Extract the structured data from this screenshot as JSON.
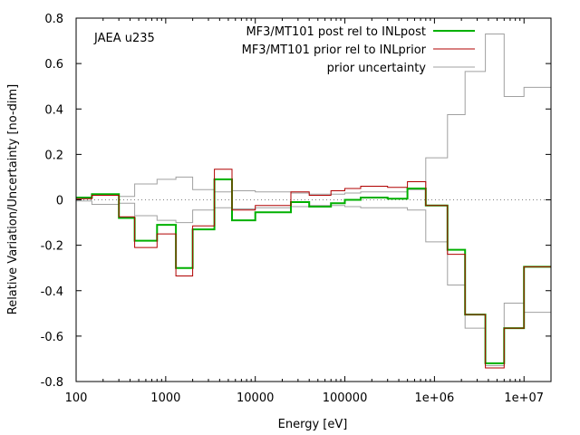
{
  "chart_data": {
    "type": "line",
    "step": true,
    "annotation": "JAEA u235",
    "xlabel": "Energy [eV]",
    "ylabel": "Relative Variation/Uncertainty [no-dim]",
    "xscale": "log",
    "xlim": [
      100,
      20000000
    ],
    "ylim": [
      -0.8,
      0.8
    ],
    "xticks": [
      {
        "value": 100,
        "label": "100"
      },
      {
        "value": 1000,
        "label": "1000"
      },
      {
        "value": 10000,
        "label": "10000"
      },
      {
        "value": 100000,
        "label": "100000"
      },
      {
        "value": 1000000,
        "label": "1e+06"
      },
      {
        "value": 10000000,
        "label": "1e+07"
      }
    ],
    "yticks": [
      {
        "value": -0.8,
        "label": "-0.8"
      },
      {
        "value": -0.6,
        "label": "-0.6"
      },
      {
        "value": -0.4,
        "label": "-0.4"
      },
      {
        "value": -0.2,
        "label": "-0.2"
      },
      {
        "value": 0,
        "label": "0"
      },
      {
        "value": 0.2,
        "label": "0.2"
      },
      {
        "value": 0.4,
        "label": "0.4"
      },
      {
        "value": 0.6,
        "label": "0.6"
      },
      {
        "value": 0.8,
        "label": "0.8"
      }
    ],
    "legend_position": "top-right",
    "zero_line": "dotted",
    "bin_edges": [
      100,
      150,
      300,
      450,
      800,
      1300,
      2000,
      3500,
      5500,
      10000,
      25000,
      40000,
      70000,
      100000,
      150000,
      300000,
      500000,
      800000,
      1400000,
      2200000,
      3700000,
      6000000,
      10000000,
      20000000
    ],
    "series": [
      {
        "name": "MF3/MT101 post rel to INLpost",
        "color": "#00b000",
        "values": [
          0.01,
          0.025,
          -0.08,
          -0.18,
          -0.11,
          -0.3,
          -0.13,
          0.09,
          -0.09,
          -0.055,
          -0.01,
          -0.03,
          -0.015,
          0.0,
          0.01,
          0.005,
          0.05,
          -0.025,
          -0.22,
          -0.505,
          -0.72,
          -0.565,
          -0.295
        ]
      },
      {
        "name": "MF3/MT101 prior rel to INLprior",
        "color": "#b00000",
        "values": [
          0.005,
          0.02,
          -0.075,
          -0.21,
          -0.15,
          -0.335,
          -0.115,
          0.135,
          -0.045,
          -0.025,
          0.035,
          0.02,
          0.04,
          0.05,
          0.06,
          0.055,
          0.08,
          -0.025,
          -0.24,
          -0.505,
          -0.74,
          -0.565,
          -0.295
        ]
      },
      {
        "name": "prior uncertainty",
        "color": "#a0a0a0",
        "mirrored": true,
        "values": [
          0.005,
          0.02,
          0.015,
          0.07,
          0.09,
          0.1,
          0.045,
          0.035,
          0.04,
          0.035,
          0.03,
          0.025,
          0.025,
          0.03,
          0.035,
          0.035,
          0.045,
          0.185,
          0.375,
          0.565,
          0.73,
          0.455,
          0.495
        ]
      }
    ]
  }
}
